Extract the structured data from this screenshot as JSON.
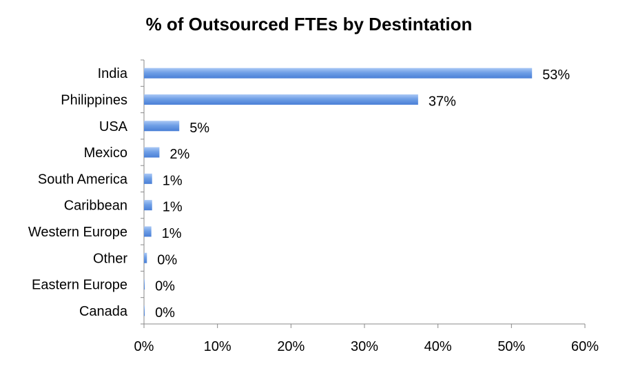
{
  "chart_data": {
    "type": "bar",
    "orientation": "horizontal",
    "title": "% of Outsourced FTEs by Destintation",
    "xlabel": "",
    "ylabel": "",
    "categories": [
      "India",
      "Philippines",
      "USA",
      "Mexico",
      "South America",
      "Caribbean",
      "Western Europe",
      "Other",
      "Eastern Europe",
      "Canada"
    ],
    "values": [
      52.8,
      37.3,
      4.8,
      2.1,
      1.1,
      1.1,
      1.0,
      0.4,
      0.1,
      0.1
    ],
    "data_labels": [
      "53%",
      "37%",
      "5%",
      "2%",
      "1%",
      "1%",
      "1%",
      "0%",
      "0%",
      "0%"
    ],
    "xlim": [
      0,
      60
    ],
    "x_ticks": [
      "0%",
      "10%",
      "20%",
      "30%",
      "40%",
      "50%",
      "60%"
    ],
    "bar_color": "#6f9fe6",
    "grid": false,
    "legend": "none"
  }
}
